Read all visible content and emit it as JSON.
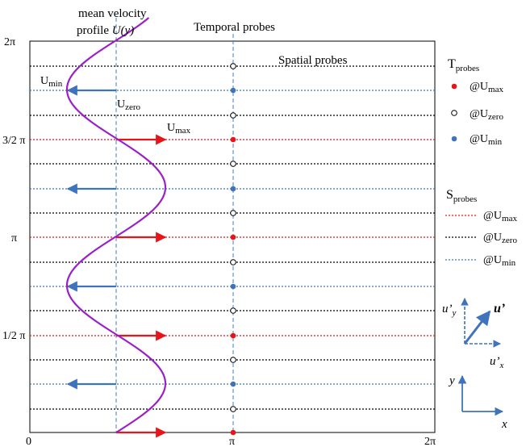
{
  "header": {
    "profile_line1": "mean velocity",
    "profile_line2": "profile",
    "profile_symbol": "U(y)",
    "temporal_title": "Temporal probes",
    "spatial_title": "Spatial probes"
  },
  "axes": {
    "y_ticks": [
      "2π",
      "3/2 π",
      "π",
      "1/2 π",
      "0"
    ],
    "x_ticks": [
      "0",
      "π",
      "2π"
    ]
  },
  "annotations": {
    "u_min": {
      "main": "U",
      "sub": "min"
    },
    "u_zero": {
      "main": "U",
      "sub": "zero"
    },
    "u_max": {
      "main": "U",
      "sub": "max"
    }
  },
  "legend_temporal": {
    "title_main": "T",
    "title_sub": "probes",
    "items": [
      {
        "prefix": "@U",
        "sub": "max",
        "marker": "filled-red-dot",
        "color": "#e8141a"
      },
      {
        "prefix": "@U",
        "sub": "zero",
        "marker": "open-black-dot",
        "color": "#000000"
      },
      {
        "prefix": "@U",
        "sub": "min",
        "marker": "filled-blue-dot",
        "color": "#3f73bd"
      }
    ]
  },
  "legend_spatial": {
    "title_main": "S",
    "title_sub": "probes",
    "items": [
      {
        "prefix": "@U",
        "sub": "max",
        "line": "red-dotted-line",
        "color": "#e8141a"
      },
      {
        "prefix": "@U",
        "sub": "zero",
        "line": "black-dotted-line",
        "color": "#000000"
      },
      {
        "prefix": "@U",
        "sub": "min",
        "line": "blue-dotted-line",
        "color": "#3f73bd"
      }
    ]
  },
  "velocity_vector": {
    "uy_main": "u’",
    "uy_sub": "y",
    "u_prime": "u’",
    "ux_main": "u’",
    "ux_sub": "x"
  },
  "axes_icon": {
    "y": "y",
    "x": "x"
  },
  "colors": {
    "profile_curve": "#9b1fc8",
    "max_arrow": "#e8141a",
    "min_arrow": "#3f73bd",
    "zero_line": "#000000",
    "guide_line": "#4a7fc6"
  }
}
